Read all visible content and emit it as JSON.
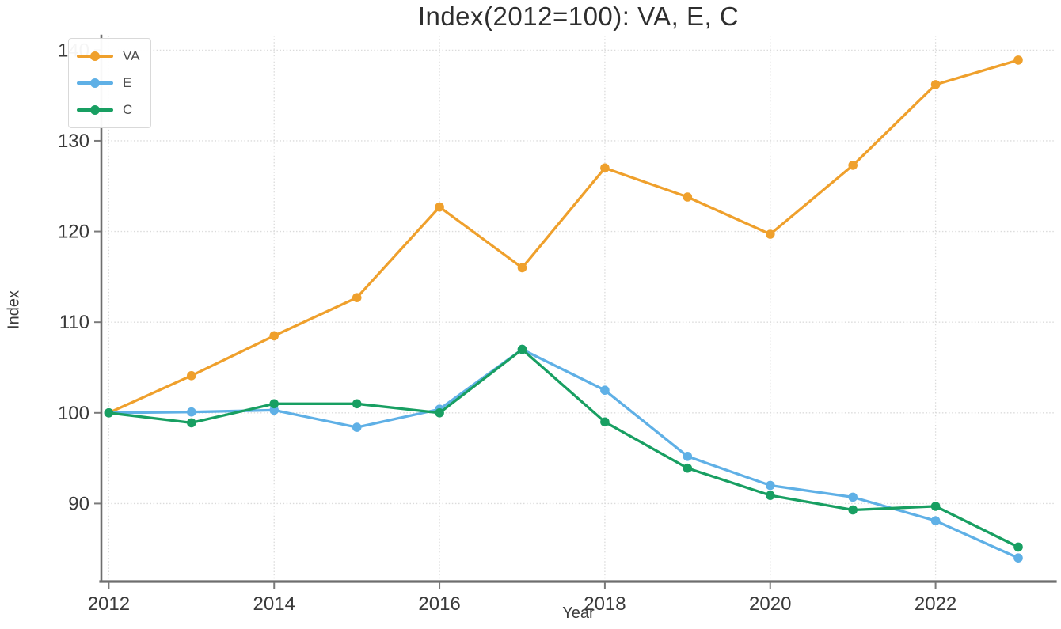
{
  "title": "Index(2012=100): VA, E, C",
  "chart_data": {
    "type": "line",
    "title": "Index(2012=100): VA, E, C",
    "xlabel": "Year",
    "ylabel": "Index",
    "x": [
      2012,
      2013,
      2014,
      2015,
      2016,
      2017,
      2018,
      2019,
      2020,
      2021,
      2022,
      2023
    ],
    "series": [
      {
        "name": "VA",
        "color": "#EFA02C",
        "values": [
          100,
          104.1,
          108.5,
          112.7,
          122.7,
          116.0,
          127.0,
          123.8,
          119.7,
          127.3,
          136.2,
          138.9
        ]
      },
      {
        "name": "E",
        "color": "#5FB0E6",
        "values": [
          100,
          100.1,
          100.3,
          98.4,
          100.4,
          107.0,
          102.5,
          95.2,
          92.0,
          90.7,
          88.1,
          84.0
        ]
      },
      {
        "name": "C",
        "color": "#189F62",
        "values": [
          100,
          98.9,
          101.0,
          101.0,
          100.0,
          107.0,
          99.0,
          93.9,
          90.9,
          89.3,
          89.7,
          85.2
        ]
      }
    ],
    "xticks": [
      2012,
      2014,
      2016,
      2018,
      2020,
      2022
    ],
    "yticks": [
      90,
      100,
      110,
      120,
      130,
      140
    ],
    "xlim": [
      2011.91,
      2023.45
    ],
    "ylim": [
      81.4,
      141.6
    ],
    "grid": true,
    "legend_position": "top-left"
  },
  "style_colors": {
    "grid": "#dbdbdb",
    "spine": "#6e6e6e",
    "tick": "#7a7a7a",
    "tick_label": "#3a3a3a",
    "title_text": "#2e2e2e",
    "legend_text": "#4d4d4d",
    "background": "#ffffff"
  }
}
